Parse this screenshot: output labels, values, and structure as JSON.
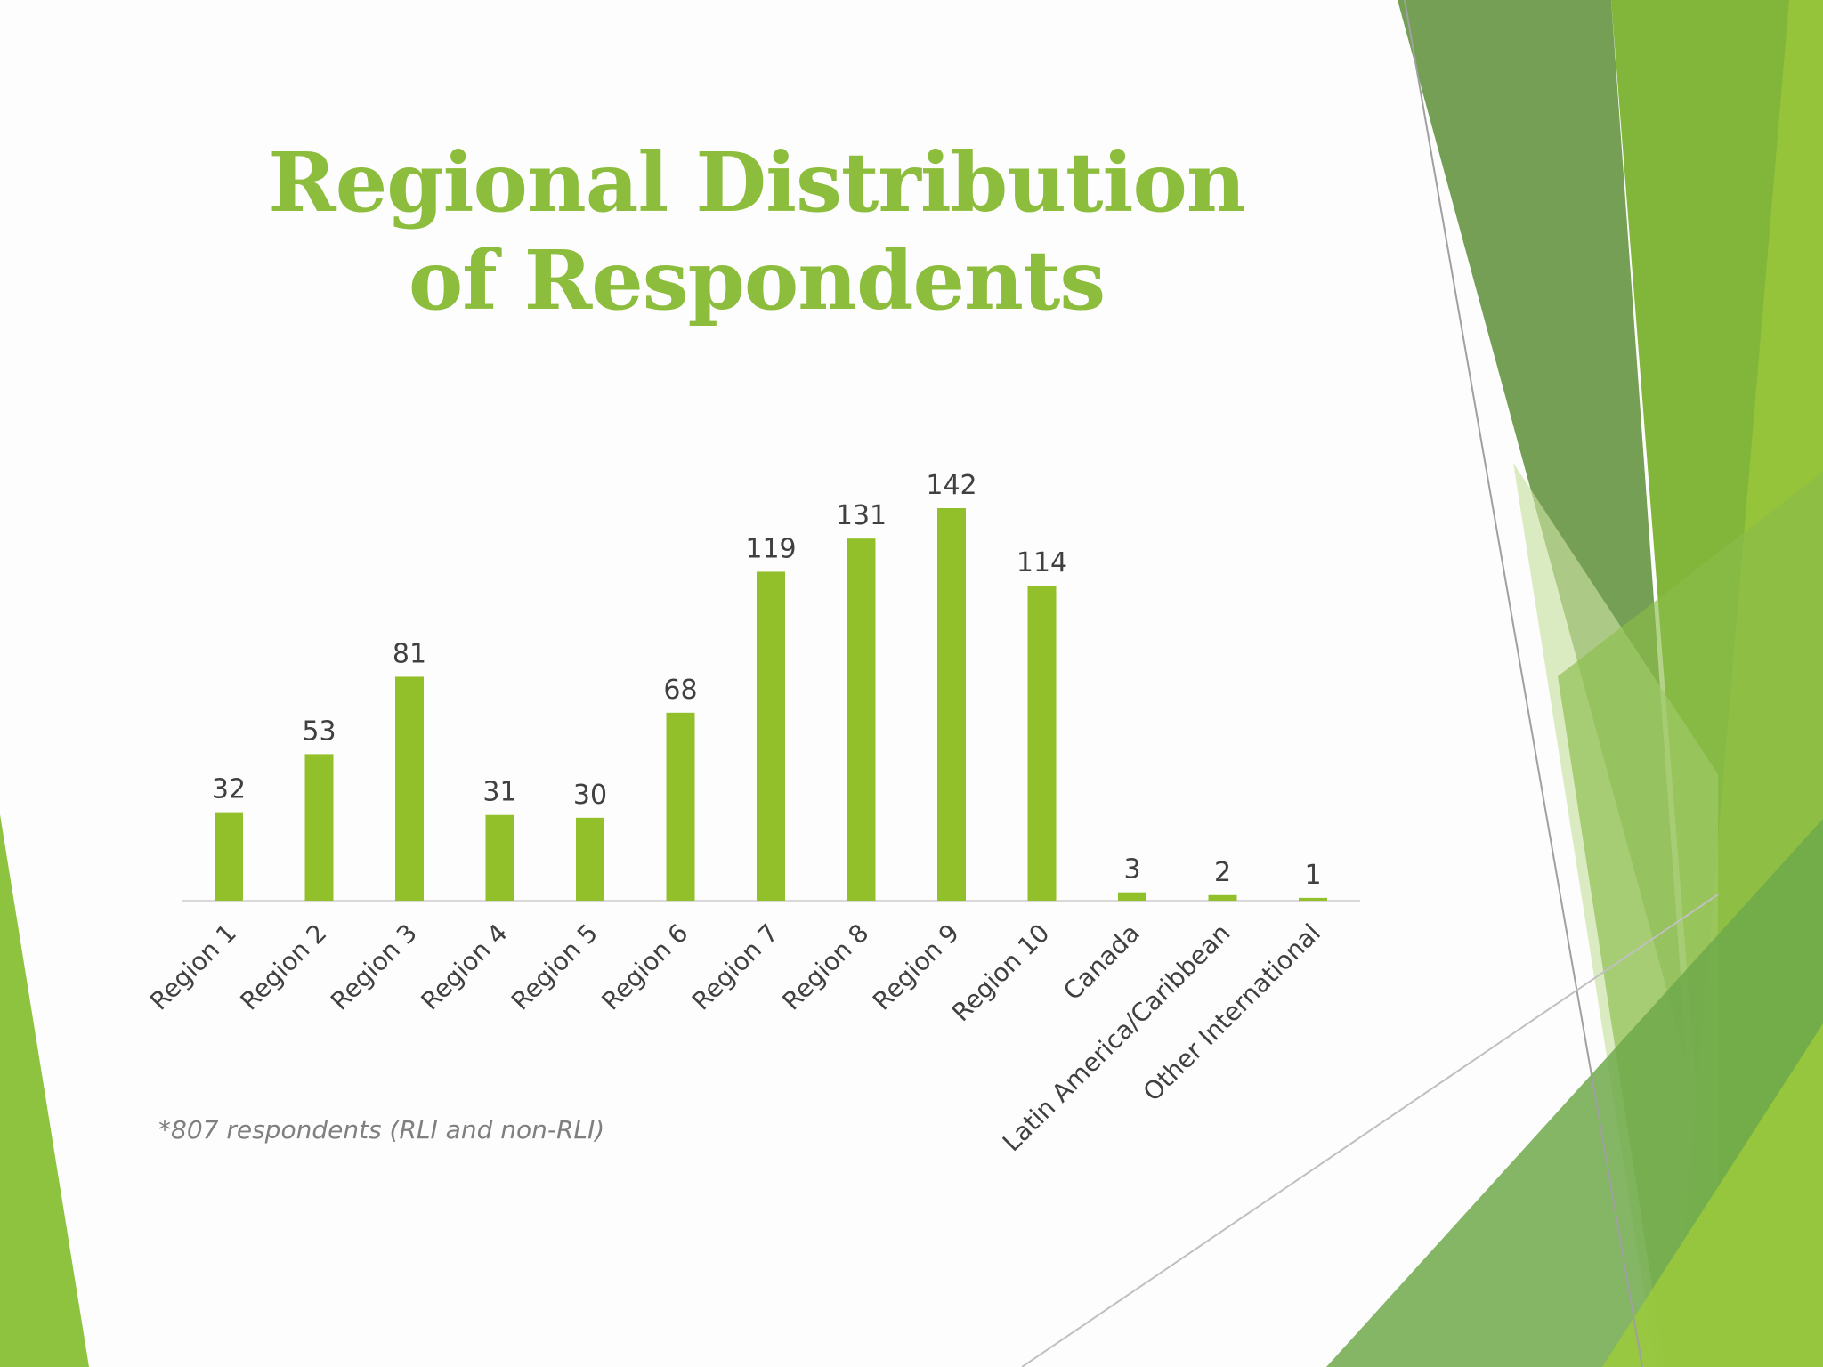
{
  "slide": {
    "title_line1": "Regional Distribution",
    "title_line2": "of Respondents",
    "footnote": "*807 respondents (RLI and non-RLI)"
  },
  "colors": {
    "title": "#8cbd3c",
    "bar": "#92c02a",
    "axis": "#d9d9d9",
    "label": "#404040",
    "footnote": "#7f7f7f"
  },
  "chart_data": {
    "type": "bar",
    "title": "Regional Distribution of Respondents",
    "xlabel": "",
    "ylabel": "",
    "categories": [
      "Region 1",
      "Region 2",
      "Region 3",
      "Region 4",
      "Region 5",
      "Region 6",
      "Region 7",
      "Region 8",
      "Region 9",
      "Region 10",
      "Canada",
      "Latin America/Caribbean",
      "Other International"
    ],
    "values": [
      32,
      53,
      81,
      31,
      30,
      68,
      119,
      131,
      142,
      114,
      3,
      2,
      1
    ],
    "data_labels": true,
    "grid": false,
    "legend": "none",
    "ylim": [
      0,
      142
    ]
  }
}
